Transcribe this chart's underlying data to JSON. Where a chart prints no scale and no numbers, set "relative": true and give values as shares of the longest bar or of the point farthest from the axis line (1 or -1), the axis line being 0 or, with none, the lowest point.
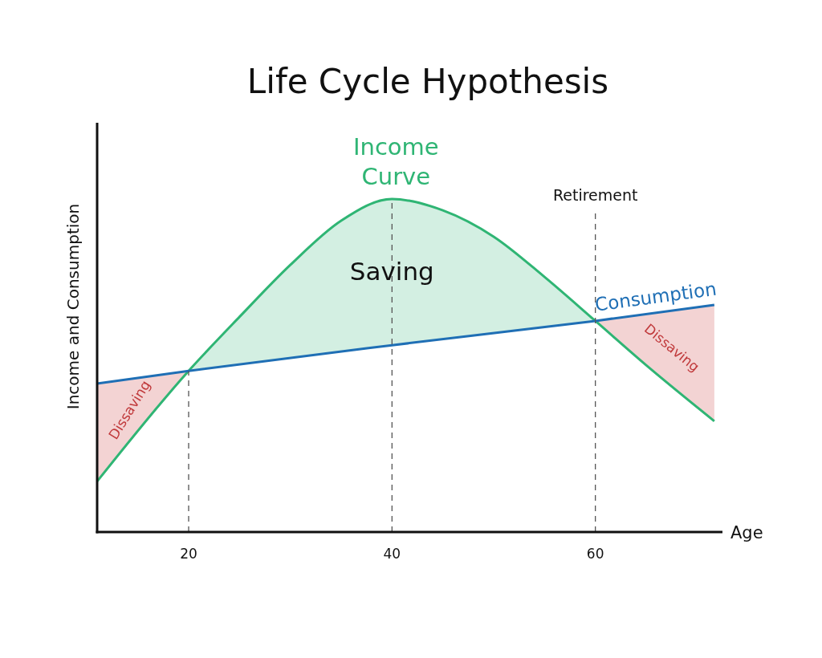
{
  "chart_data": {
    "type": "line",
    "title": "Life Cycle Hypothesis",
    "xlabel": "Age",
    "ylabel": "Income and Consumption",
    "relative": true,
    "xlim": [
      11,
      72.5
    ],
    "xticks": [
      20,
      40,
      60
    ],
    "series": [
      {
        "name": "Income Curve",
        "color": "#2fb574",
        "x": [
          11,
          20,
          25,
          30,
          35,
          40,
          45,
          50,
          55,
          60,
          65,
          71.7
        ],
        "values": [
          0.152,
          0.484,
          0.646,
          0.802,
          0.935,
          1,
          0.966,
          0.887,
          0.766,
          0.634,
          0.501,
          0.333
        ]
      },
      {
        "name": "Consumption",
        "color": "#1f6fb5",
        "x": [
          11,
          20,
          40,
          60,
          71.7
        ],
        "values": [
          0.446,
          0.484,
          0.561,
          0.634,
          0.682
        ]
      }
    ],
    "ref_lines": [
      {
        "axis": "x",
        "value": 20,
        "line_style": "dashed",
        "color": "#555555"
      },
      {
        "axis": "x",
        "value": 40,
        "line_style": "dashed",
        "color": "#555555"
      },
      {
        "axis": "x",
        "value": 60,
        "label": "Retirement",
        "line_style": "dashed",
        "color": "#555555"
      }
    ],
    "annotations": [
      "Dissaving",
      "Saving",
      "Dissaving"
    ]
  }
}
